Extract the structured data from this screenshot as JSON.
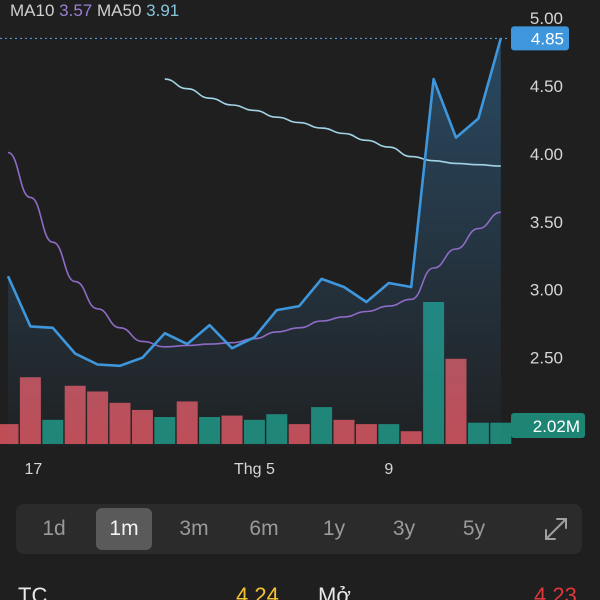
{
  "legend": {
    "ma10_label": "MA10",
    "ma10_value": "3.57",
    "ma50_label": "MA50",
    "ma50_value": "3.91"
  },
  "chart_data": {
    "type": "line",
    "price_axis": {
      "ticks": [
        "5.00",
        "4.50",
        "4.00",
        "3.50",
        "3.00",
        "2.50"
      ],
      "range": [
        1.85,
        5.0
      ],
      "current_price_label": "4.85",
      "current_price": 4.85,
      "volume_label": "2.02M"
    },
    "x_ticks": [
      {
        "label": "17",
        "index": 1
      },
      {
        "label": "Thg 5",
        "index": 11
      },
      {
        "label": "9",
        "index": 17
      }
    ],
    "close": [
      3.1,
      2.73,
      2.72,
      2.53,
      2.45,
      2.44,
      2.5,
      2.68,
      2.6,
      2.74,
      2.57,
      2.65,
      2.85,
      2.88,
      3.08,
      3.02,
      2.91,
      3.05,
      3.02,
      4.55,
      4.12,
      4.26,
      4.85
    ],
    "ma10": [
      4.01,
      3.68,
      3.35,
      3.06,
      2.86,
      2.72,
      2.62,
      2.58,
      2.59,
      2.6,
      2.61,
      2.64,
      2.69,
      2.72,
      2.77,
      2.8,
      2.84,
      2.88,
      2.93,
      3.16,
      3.3,
      3.45,
      3.57
    ],
    "ma50": [
      null,
      null,
      null,
      null,
      null,
      null,
      null,
      4.55,
      4.48,
      4.41,
      4.36,
      4.32,
      4.27,
      4.23,
      4.19,
      4.15,
      4.1,
      4.05,
      3.98,
      3.95,
      3.93,
      3.92,
      3.91
    ],
    "volume": [
      {
        "h": 0.14,
        "up": false
      },
      {
        "h": 0.47,
        "up": false
      },
      {
        "h": 0.17,
        "up": true
      },
      {
        "h": 0.41,
        "up": false
      },
      {
        "h": 0.37,
        "up": false
      },
      {
        "h": 0.29,
        "up": false
      },
      {
        "h": 0.24,
        "up": false
      },
      {
        "h": 0.19,
        "up": true
      },
      {
        "h": 0.3,
        "up": false
      },
      {
        "h": 0.19,
        "up": true
      },
      {
        "h": 0.2,
        "up": false
      },
      {
        "h": 0.17,
        "up": true
      },
      {
        "h": 0.21,
        "up": true
      },
      {
        "h": 0.14,
        "up": false
      },
      {
        "h": 0.26,
        "up": true
      },
      {
        "h": 0.17,
        "up": false
      },
      {
        "h": 0.14,
        "up": false
      },
      {
        "h": 0.14,
        "up": true
      },
      {
        "h": 0.09,
        "up": false
      },
      {
        "h": 1.0,
        "up": true
      },
      {
        "h": 0.6,
        "up": false
      },
      {
        "h": 0.15,
        "up": true
      },
      {
        "h": 0.15,
        "up": true
      }
    ],
    "colors": {
      "price_line": "#3e97dd",
      "ma10": "#8e6bc6",
      "ma50": "#a2d2e6",
      "volume_up": "#1e8575",
      "volume_down": "#c04d55",
      "price_tag": "#3e97dd",
      "volume_tag": "#1e8575"
    }
  },
  "timeframes": [
    {
      "label": "1d",
      "active": false
    },
    {
      "label": "1m",
      "active": true
    },
    {
      "label": "3m",
      "active": false
    },
    {
      "label": "6m",
      "active": false
    },
    {
      "label": "1y",
      "active": false
    },
    {
      "label": "3y",
      "active": false
    },
    {
      "label": "5y",
      "active": false
    }
  ],
  "expand_icon": "expand-arrows-icon",
  "stats": {
    "tc_label": "TC",
    "tc_value": "4.24",
    "open_label": "Mở",
    "open_value": "4.23"
  }
}
